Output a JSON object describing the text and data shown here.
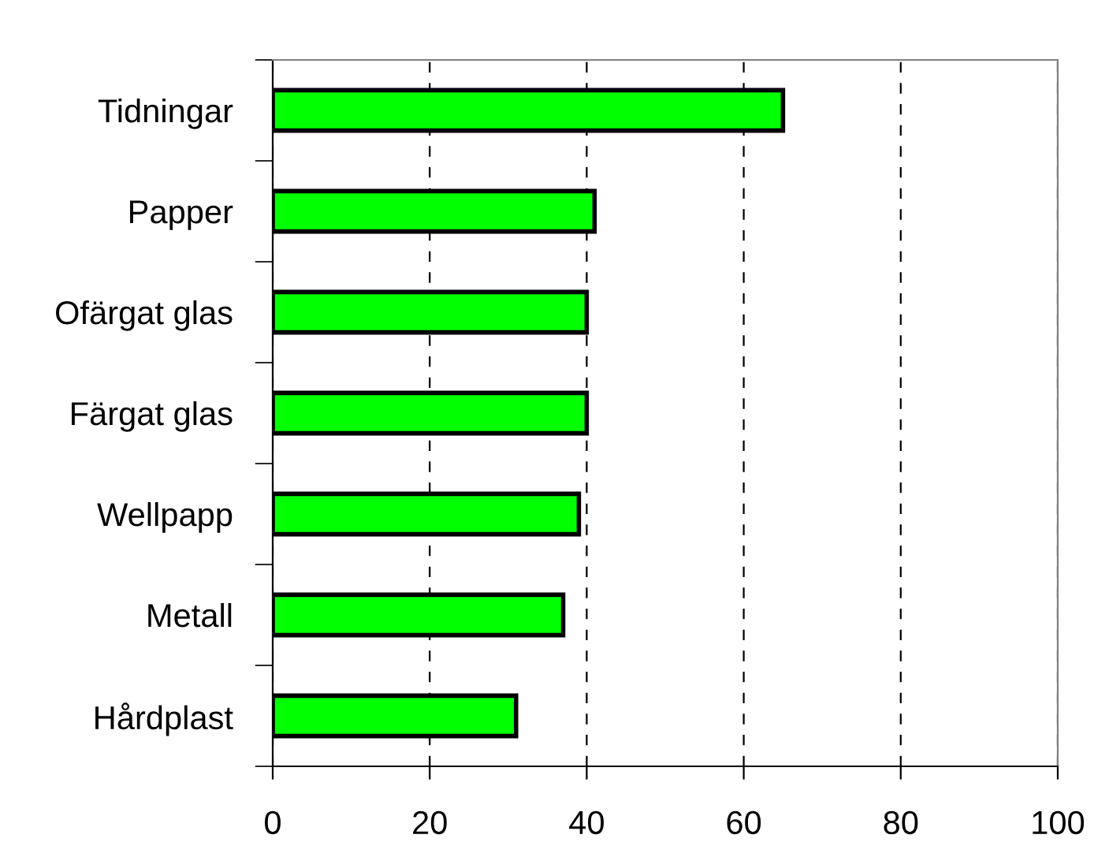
{
  "chart_data": {
    "type": "bar",
    "orientation": "horizontal",
    "categories": [
      "Tidningar",
      "Papper",
      "Ofärgat glas",
      "Färgat glas",
      "Wellpapp",
      "Metall",
      "Hårdplast"
    ],
    "values": [
      65,
      41,
      40,
      40,
      39,
      37,
      31
    ],
    "color": "#00ff00",
    "xlim": [
      0,
      100
    ],
    "xticks": [
      0,
      20,
      40,
      60,
      80,
      100
    ],
    "grid": "x"
  }
}
